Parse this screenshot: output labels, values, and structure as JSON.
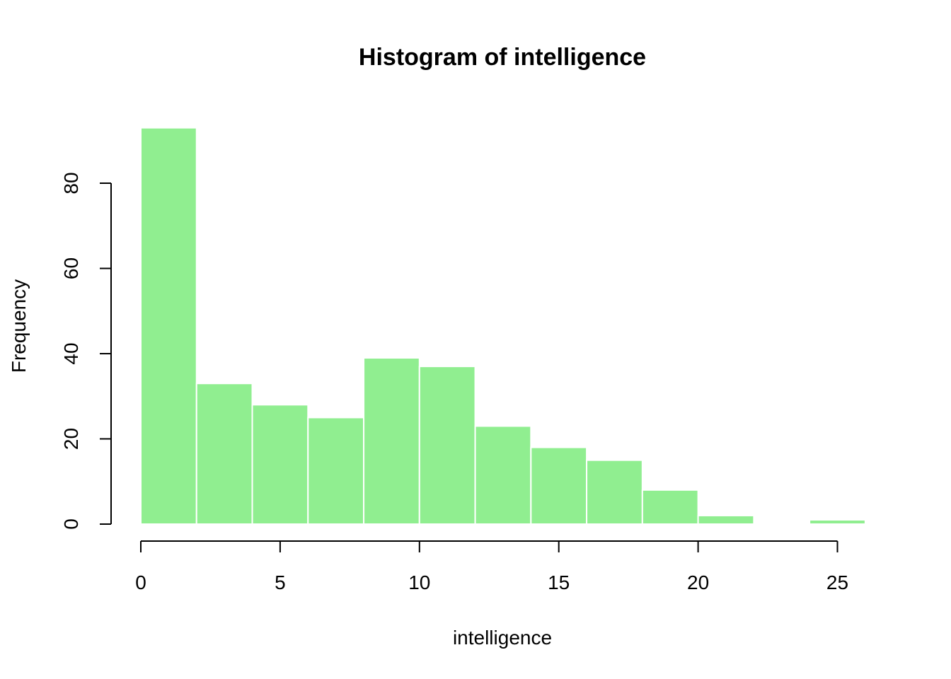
{
  "chart_data": {
    "type": "bar",
    "title": "Histogram of intelligence",
    "xlabel": "intelligence",
    "ylabel": "Frequency",
    "bins": [
      {
        "start": 0,
        "end": 2,
        "count": 93
      },
      {
        "start": 2,
        "end": 4,
        "count": 33
      },
      {
        "start": 4,
        "end": 6,
        "count": 28
      },
      {
        "start": 6,
        "end": 8,
        "count": 25
      },
      {
        "start": 8,
        "end": 10,
        "count": 39
      },
      {
        "start": 10,
        "end": 12,
        "count": 37
      },
      {
        "start": 12,
        "end": 14,
        "count": 23
      },
      {
        "start": 14,
        "end": 16,
        "count": 18
      },
      {
        "start": 16,
        "end": 18,
        "count": 15
      },
      {
        "start": 18,
        "end": 20,
        "count": 8
      },
      {
        "start": 20,
        "end": 22,
        "count": 2
      },
      {
        "start": 22,
        "end": 24,
        "count": 0
      },
      {
        "start": 24,
        "end": 26,
        "count": 1
      }
    ],
    "x_ticks": [
      0,
      5,
      10,
      15,
      20,
      25
    ],
    "y_ticks": [
      0,
      20,
      40,
      60,
      80
    ],
    "xlim": [
      0,
      26
    ],
    "ylim": [
      0,
      93
    ],
    "bar_color": "#90ee90",
    "bar_border_color": "#ffffff",
    "grid": false,
    "legend": "none"
  }
}
